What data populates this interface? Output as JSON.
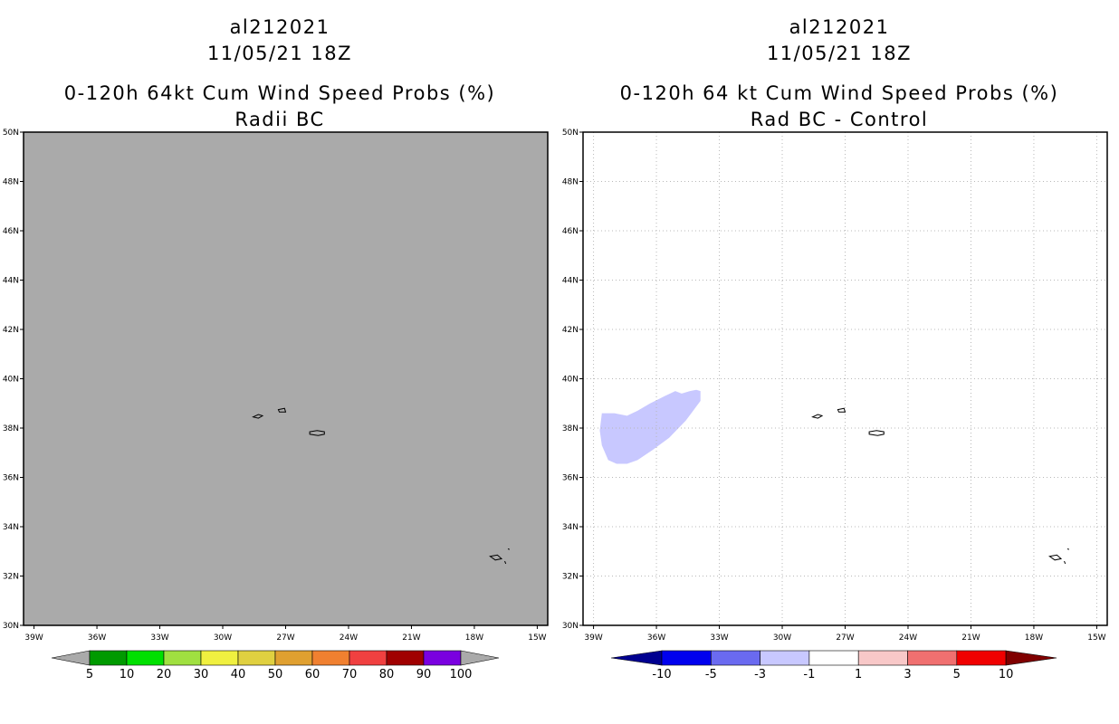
{
  "panels": [
    {
      "storm_id": "al212021",
      "datetime": "11/05/21 18Z",
      "title": "0-120h 64kt Cum Wind Speed Probs (%)",
      "subtitle": "Radii BC",
      "background_color": "#aaaaaa",
      "gridlines": false,
      "colorbar": {
        "labels": [
          "5",
          "10",
          "20",
          "30",
          "40",
          "50",
          "60",
          "70",
          "80",
          "90",
          "100"
        ],
        "colors": [
          "#009a00",
          "#00e000",
          "#a0e040",
          "#f0f040",
          "#e0d040",
          "#e0a030",
          "#f08030",
          "#f04040",
          "#a00000",
          "#7a00e0"
        ],
        "arrow_color": "#aaaaaa"
      }
    },
    {
      "storm_id": "al212021",
      "datetime": "11/05/21 18Z",
      "title": "0-120h 64 kt Cum Wind Speed Probs (%)",
      "subtitle": "Rad BC - Control",
      "background_color": "#ffffff",
      "gridlines": true,
      "shaded_region_color": "#c8c8ff",
      "colorbar": {
        "labels": [
          "-10",
          "-5",
          "-3",
          "-1",
          "1",
          "3",
          "5",
          "10"
        ],
        "colors": [
          "#0000ee",
          "#6a6af0",
          "#c8c8ff",
          "#ffffff",
          "#f8c8c8",
          "#f07070",
          "#f00000"
        ],
        "left_arrow_color": "#000090",
        "right_arrow_color": "#800000"
      }
    }
  ],
  "map": {
    "lon_labels": [
      "39W",
      "36W",
      "33W",
      "30W",
      "27W",
      "24W",
      "21W",
      "18W",
      "15W"
    ],
    "lat_labels": [
      "50N",
      "48N",
      "46N",
      "44N",
      "42N",
      "40N",
      "38N",
      "36N",
      "34N",
      "32N",
      "30N"
    ],
    "lon_values": [
      -39,
      -36,
      -33,
      -30,
      -27,
      -24,
      -21,
      -18,
      -15
    ],
    "lat_values": [
      50,
      48,
      46,
      44,
      42,
      40,
      38,
      36,
      34,
      32,
      30
    ],
    "lon_range": [
      -39.5,
      -14.5
    ],
    "lat_range": [
      30,
      50
    ]
  }
}
